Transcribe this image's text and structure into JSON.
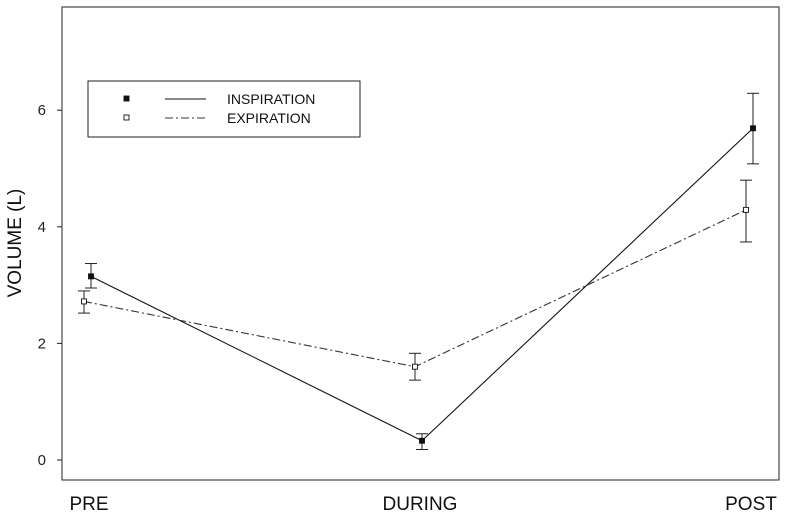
{
  "chart_data": {
    "type": "line",
    "title": "",
    "xlabel": "",
    "ylabel": "VOLUME (L)",
    "categories": [
      "PRE",
      "DURING",
      "POST"
    ],
    "ylim": [
      -0.15,
      7.4
    ],
    "yticks": [
      0,
      2,
      4,
      6
    ],
    "grid": false,
    "legend_position": "top-left",
    "series": [
      {
        "name": "INSPIRATION",
        "values": [
          3.15,
          0.33,
          5.69
        ],
        "err_low": [
          2.95,
          0.18,
          5.08
        ],
        "err_high": [
          3.37,
          0.45,
          6.29
        ],
        "marker": "filled-square",
        "line_style": "solid",
        "color": "#111111"
      },
      {
        "name": "EXPIRATION",
        "values": [
          2.72,
          1.6,
          4.29
        ],
        "err_low": [
          2.52,
          1.37,
          3.74
        ],
        "err_high": [
          2.9,
          1.83,
          4.8
        ],
        "marker": "open-square",
        "line_style": "dash-dot",
        "color": "#333333"
      }
    ]
  }
}
